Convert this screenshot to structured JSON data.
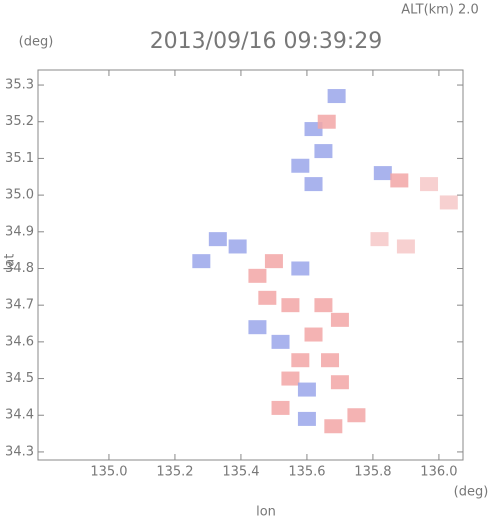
{
  "chart_data": {
    "type": "scatter",
    "title": "2013/09/16 09:39:29",
    "altitude_label": "ALT(km) 2.0",
    "y_unit": "(deg)",
    "x_unit": "(deg)",
    "xlabel": "lon",
    "ylabel": "lat",
    "xlim": [
      134.785,
      136.073
    ],
    "ylim": [
      34.278,
      35.341
    ],
    "xticks": [
      {
        "value": 135.0,
        "label": "135.0"
      },
      135.2,
      135.4,
      135.6,
      135.8,
      {
        "value": 136.0,
        "label": "136.0"
      }
    ],
    "yticks": [
      34.3,
      34.4,
      34.5,
      34.6,
      34.7,
      34.8,
      34.9,
      {
        "value": 35.0,
        "label": "35.0"
      },
      35.1,
      35.2,
      35.3
    ],
    "x": [
      135.69,
      135.62,
      135.65,
      135.58,
      135.62,
      135.66,
      135.83,
      135.88,
      135.97,
      136.03,
      135.82,
      135.9,
      135.33,
      135.39,
      135.28,
      135.5,
      135.58,
      135.48,
      135.55,
      135.65,
      135.7,
      135.62,
      135.52,
      135.58,
      135.67,
      135.55,
      135.6,
      135.7,
      135.6,
      135.68,
      135.75,
      135.52,
      135.45,
      135.45
    ],
    "y": [
      35.27,
      35.18,
      35.12,
      35.08,
      35.03,
      35.2,
      35.06,
      35.04,
      35.03,
      34.98,
      34.88,
      34.86,
      34.88,
      34.86,
      34.82,
      34.82,
      34.8,
      34.72,
      34.7,
      34.7,
      34.66,
      34.62,
      34.6,
      34.55,
      34.55,
      34.5,
      34.47,
      34.49,
      34.39,
      34.37,
      34.4,
      34.42,
      34.64,
      34.78
    ],
    "point_colors": [
      "#9aa6ea",
      "#9aa6ea",
      "#9aa6ea",
      "#9aa6ea",
      "#9aa6ea",
      "#f2a6a6",
      "#9aa6ea",
      "#f2a6a6",
      "#f6c8c8",
      "#f6c8c8",
      "#f6c8c8",
      "#f6c8c8",
      "#9aa6ea",
      "#9aa6ea",
      "#9aa6ea",
      "#f2a6a6",
      "#9aa6ea",
      "#f2a6a6",
      "#f2a6a6",
      "#f2a6a6",
      "#f2a6a6",
      "#f2a6a6",
      "#9aa6ea",
      "#f2a6a6",
      "#f2a6a6",
      "#f2a6a6",
      "#9aa6ea",
      "#f2a6a6",
      "#9aa6ea",
      "#f2a6a6",
      "#f2a6a6",
      "#f2a6a6",
      "#9aa6ea",
      "#f2a6a6"
    ]
  }
}
